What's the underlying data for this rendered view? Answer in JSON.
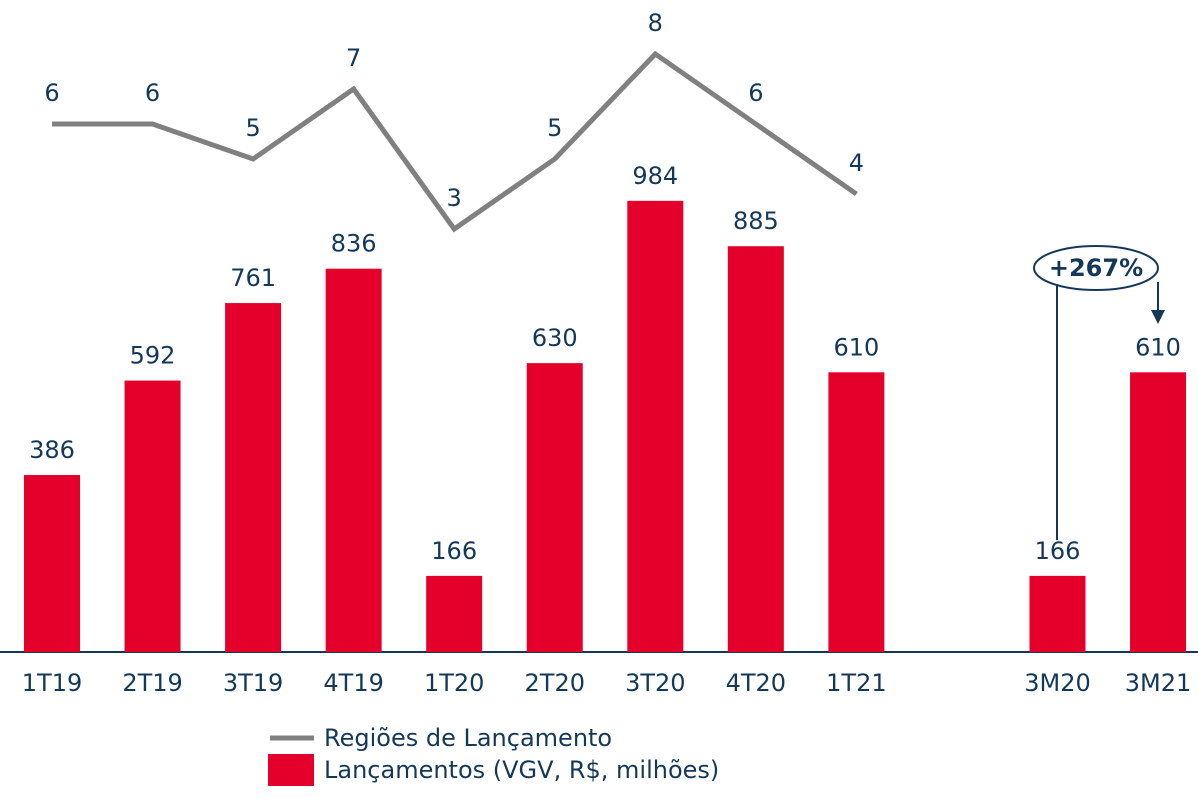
{
  "chart_data": {
    "type": "bar",
    "categories": [
      "1T19",
      "2T19",
      "3T19",
      "4T19",
      "1T20",
      "2T20",
      "3T20",
      "4T20",
      "1T21",
      null,
      "3M20",
      "3M21"
    ],
    "series": [
      {
        "name": "Lançamentos (VGV, R$, milhões)",
        "type": "bar",
        "color": "#e4002b",
        "values": [
          386,
          592,
          761,
          836,
          166,
          630,
          984,
          885,
          610,
          null,
          166,
          610
        ]
      },
      {
        "name": "Regiões de Lançamento",
        "type": "line",
        "color": "#808080",
        "values": [
          6,
          6,
          5,
          7,
          3,
          5,
          8,
          6,
          4,
          null,
          null,
          null
        ]
      }
    ],
    "annotations": [
      "+267%"
    ]
  }
}
